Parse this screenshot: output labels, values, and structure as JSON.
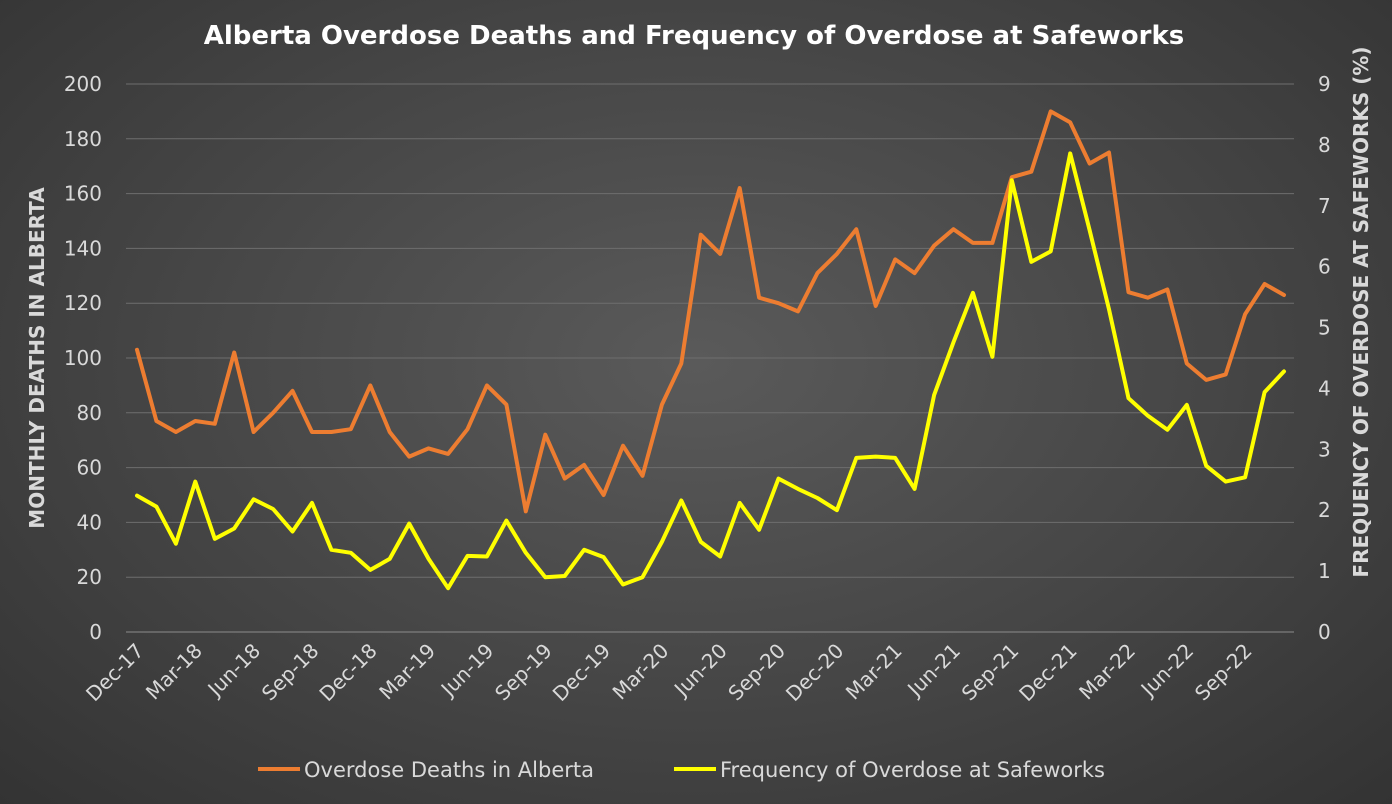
{
  "chart_data": {
    "type": "line",
    "title": "Alberta Overdose Deaths and Frequency of Overdose at Safeworks",
    "ylabel_left": "MONTHLY DEATHS IN ALBERTA",
    "ylabel_right": "FREQUENCY OF OVERDOSE AT SAFEWORKS (%)",
    "ylim_left": [
      0,
      200
    ],
    "yticks_left": [
      "0",
      "20",
      "40",
      "60",
      "80",
      "100",
      "120",
      "140",
      "160",
      "180",
      "200"
    ],
    "ylim_right": [
      0,
      9
    ],
    "yticks_right": [
      "0",
      "1",
      "2",
      "3",
      "4",
      "5",
      "6",
      "7",
      "8",
      "9"
    ],
    "x_labels": [
      "Dec-17",
      "Mar-18",
      "Jun-18",
      "Sep-18",
      "Dec-18",
      "Mar-19",
      "Jun-19",
      "Sep-19",
      "Dec-19",
      "Mar-20",
      "Jun-20",
      "Sep-20",
      "Dec-20",
      "Mar-21",
      "Jun-21",
      "Sep-21",
      "Dec-21",
      "Mar-22",
      "Jun-22",
      "Sep-22"
    ],
    "x": [
      "Dec-17",
      "Jan-18",
      "Feb-18",
      "Mar-18",
      "Apr-18",
      "May-18",
      "Jun-18",
      "Jul-18",
      "Aug-18",
      "Sep-18",
      "Oct-18",
      "Nov-18",
      "Dec-18",
      "Jan-19",
      "Feb-19",
      "Mar-19",
      "Apr-19",
      "May-19",
      "Jun-19",
      "Jul-19",
      "Aug-19",
      "Sep-19",
      "Oct-19",
      "Nov-19",
      "Dec-19",
      "Jan-20",
      "Feb-20",
      "Mar-20",
      "Apr-20",
      "May-20",
      "Jun-20",
      "Jul-20",
      "Aug-20",
      "Sep-20",
      "Oct-20",
      "Nov-20",
      "Dec-20",
      "Jan-21",
      "Feb-21",
      "Mar-21",
      "Apr-21",
      "May-21",
      "Jun-21",
      "Jul-21",
      "Aug-21",
      "Sep-21",
      "Oct-21",
      "Nov-21",
      "Dec-21",
      "Jan-22",
      "Feb-22",
      "Mar-22",
      "Apr-22",
      "May-22",
      "Jun-22",
      "Jul-22",
      "Aug-22",
      "Sep-22",
      "Oct-22",
      "Nov-22"
    ],
    "grid": true,
    "legend_position": "bottom",
    "series": [
      {
        "name": "Overdose Deaths in Alberta",
        "axis": "left",
        "color": "#ed7d31",
        "values": [
          103,
          77,
          73,
          77,
          76,
          102,
          73,
          80,
          88,
          73,
          73,
          74,
          90,
          73,
          64,
          67,
          65,
          74,
          90,
          83,
          44,
          72,
          56,
          61,
          50,
          68,
          57,
          83,
          98,
          145,
          138,
          162,
          122,
          120,
          117,
          131,
          138,
          147,
          119,
          136,
          131,
          141,
          147,
          142,
          142,
          166,
          168,
          190,
          186,
          171,
          175,
          124,
          122,
          125,
          98,
          92,
          94,
          116,
          127,
          123
        ]
      },
      {
        "name": "Frequency of Overdose at Safeworks",
        "axis": "right",
        "color": "#ffff00",
        "values": [
          2.24,
          2.06,
          1.45,
          2.47,
          1.53,
          1.7,
          2.18,
          2.02,
          1.65,
          2.12,
          1.35,
          1.3,
          1.02,
          1.2,
          1.78,
          1.2,
          0.72,
          1.25,
          1.24,
          1.83,
          1.3,
          0.9,
          0.92,
          1.35,
          1.23,
          0.78,
          0.9,
          1.48,
          2.16,
          1.48,
          1.24,
          2.12,
          1.68,
          2.52,
          2.35,
          2.2,
          2.0,
          2.86,
          2.88,
          2.86,
          2.35,
          3.89,
          4.76,
          5.57,
          4.52,
          7.42,
          6.08,
          6.25,
          7.86,
          6.6,
          5.3,
          3.84,
          3.55,
          3.32,
          3.73,
          2.73,
          2.47,
          2.54,
          3.94,
          4.28
        ]
      }
    ]
  }
}
